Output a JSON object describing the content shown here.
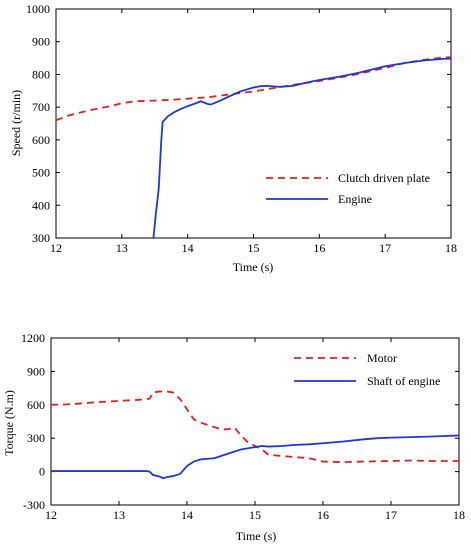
{
  "colors": {
    "red": "#e8201a",
    "blue": "#1f36e0",
    "axis": "#000000"
  },
  "chart_data": [
    {
      "type": "line",
      "title": "",
      "xlabel": "Time (s)",
      "ylabel": "Speed (r/min)",
      "xlim": [
        12,
        18
      ],
      "ylim": [
        300,
        1000
      ],
      "xticks": [
        "12",
        "13",
        "14",
        "15",
        "16",
        "17",
        "18"
      ],
      "yticks": [
        "300",
        "400",
        "500",
        "600",
        "700",
        "800",
        "900",
        "1000"
      ],
      "legend_position": "center-right",
      "series": [
        {
          "name": "Clutch driven plate",
          "style": "dashed",
          "color": "red",
          "x": [
            12.0,
            12.2,
            12.5,
            12.8,
            13.0,
            13.2,
            13.5,
            13.8,
            14.0,
            14.3,
            14.6,
            15.0,
            15.3,
            15.6,
            16.0,
            16.3,
            16.6,
            17.0,
            17.3,
            17.6,
            17.9,
            18.0
          ],
          "y": [
            660,
            675,
            690,
            702,
            712,
            718,
            720,
            723,
            726,
            730,
            738,
            748,
            758,
            768,
            780,
            790,
            802,
            820,
            835,
            845,
            852,
            853
          ]
        },
        {
          "name": "Engine",
          "style": "solid",
          "color": "blue",
          "x": [
            13.48,
            13.52,
            13.56,
            13.6,
            13.62,
            13.7,
            13.8,
            13.9,
            14.0,
            14.1,
            14.2,
            14.3,
            14.35,
            14.4,
            14.5,
            14.6,
            14.8,
            15.0,
            15.1,
            15.2,
            15.4,
            15.6,
            15.8,
            16.0,
            16.3,
            16.6,
            16.8,
            17.0,
            17.3,
            17.6,
            17.9,
            18.0
          ],
          "y": [
            300,
            380,
            450,
            600,
            655,
            672,
            685,
            695,
            703,
            710,
            718,
            710,
            708,
            712,
            720,
            730,
            748,
            760,
            764,
            765,
            762,
            765,
            775,
            783,
            793,
            805,
            815,
            825,
            835,
            843,
            848,
            848
          ]
        }
      ]
    },
    {
      "type": "line",
      "title": "",
      "xlabel": "Time (s)",
      "ylabel": "Torque (N.m)",
      "xlim": [
        12,
        18
      ],
      "ylim": [
        -300,
        1200
      ],
      "xticks": [
        "12",
        "13",
        "14",
        "15",
        "16",
        "17",
        "18"
      ],
      "yticks": [
        "-300",
        "0",
        "300",
        "600",
        "900",
        "1200"
      ],
      "legend_position": "top-right",
      "series": [
        {
          "name": "Motor",
          "style": "dashed",
          "color": "red",
          "x": [
            12.0,
            12.3,
            12.6,
            13.0,
            13.3,
            13.45,
            13.5,
            13.6,
            13.7,
            13.8,
            13.9,
            14.0,
            14.1,
            14.2,
            14.4,
            14.5,
            14.6,
            14.7,
            14.8,
            14.9,
            15.0,
            15.1,
            15.2,
            15.4,
            15.6,
            15.8,
            16.0,
            16.3,
            16.6,
            17.0,
            17.3,
            17.6,
            18.0
          ],
          "y": [
            600,
            605,
            620,
            635,
            645,
            655,
            710,
            720,
            720,
            710,
            650,
            560,
            470,
            440,
            400,
            380,
            380,
            395,
            320,
            260,
            230,
            200,
            150,
            140,
            130,
            120,
            90,
            85,
            90,
            95,
            100,
            95,
            95
          ]
        },
        {
          "name": "Shaft of engine",
          "style": "solid",
          "color": "blue",
          "x": [
            12.0,
            12.5,
            13.0,
            13.4,
            13.45,
            13.5,
            13.6,
            13.65,
            13.7,
            13.8,
            13.9,
            14.0,
            14.1,
            14.2,
            14.4,
            14.6,
            14.8,
            15.0,
            15.1,
            15.2,
            15.4,
            15.6,
            15.8,
            16.0,
            16.3,
            16.6,
            16.8,
            17.0,
            17.3,
            17.6,
            17.8,
            18.0
          ],
          "y": [
            5,
            5,
            5,
            5,
            0,
            -30,
            -45,
            -60,
            -50,
            -40,
            -20,
            50,
            90,
            110,
            120,
            160,
            200,
            220,
            230,
            225,
            230,
            240,
            245,
            255,
            270,
            290,
            300,
            305,
            310,
            315,
            320,
            325
          ]
        }
      ]
    }
  ]
}
